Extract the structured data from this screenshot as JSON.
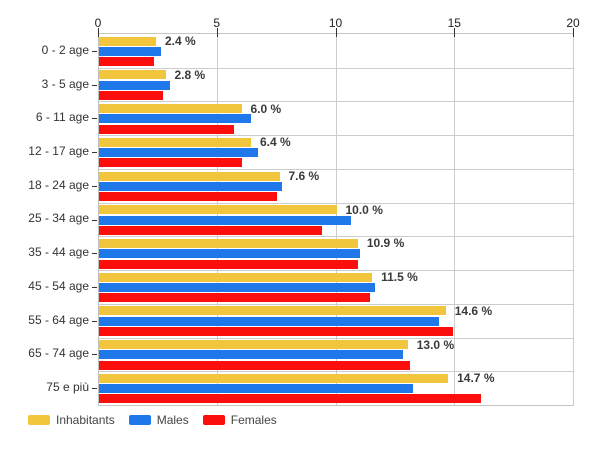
{
  "chart_data": {
    "type": "bar",
    "orientation": "horizontal",
    "title": "",
    "categories": [
      "0 - 2 age",
      "3 - 5 age",
      "6 - 11 age",
      "12 - 17 age",
      "18 - 24 age",
      "25 - 34 age",
      "35 - 44 age",
      "45 - 54 age",
      "55 - 64 age",
      "65 - 74 age",
      "75 e più"
    ],
    "series": [
      {
        "name": "Inhabitants",
        "color": "#F2C63C",
        "values": [
          2.4,
          2.8,
          6.0,
          6.4,
          7.6,
          10.0,
          10.9,
          11.5,
          14.6,
          13.0,
          14.7
        ]
      },
      {
        "name": "Males",
        "color": "#1E78E9",
        "values": [
          2.6,
          3.0,
          6.4,
          6.7,
          7.7,
          10.6,
          11.0,
          11.6,
          14.3,
          12.8,
          13.2
        ]
      },
      {
        "name": "Females",
        "color": "#FB0E0B",
        "values": [
          2.3,
          2.7,
          5.7,
          6.0,
          7.5,
          9.4,
          10.9,
          11.4,
          14.9,
          13.1,
          16.1
        ]
      }
    ],
    "value_labels": [
      "2.4 %",
      "2.8 %",
      "6.0 %",
      "6.4 %",
      "7.6 %",
      "10.0 %",
      "10.9 %",
      "11.5 %",
      "14.6 %",
      "13.0 %",
      "14.7 %"
    ],
    "x_ticks": [
      "0",
      "5",
      "10",
      "15",
      "20"
    ],
    "xlim": [
      0,
      20
    ],
    "grid": true,
    "legend_position": "bottom-left",
    "unit": "%"
  },
  "colors": {
    "background": "#ffffff",
    "grid": "#cccccc",
    "axis_line": "#c0c0c0",
    "tick": "#333333",
    "category_label": "#333333",
    "value_label": "#3a3a3a",
    "legend_text": "#444444"
  }
}
